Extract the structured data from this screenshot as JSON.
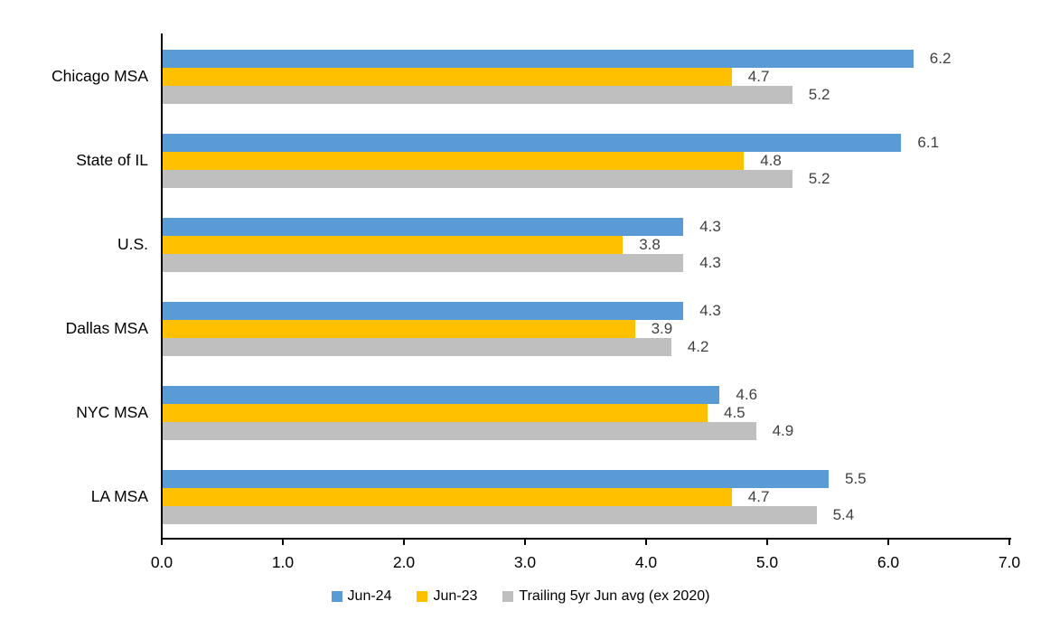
{
  "chart_data": {
    "type": "bar",
    "orientation": "horizontal",
    "title": "",
    "xlabel": "",
    "ylabel": "",
    "xlim": [
      0,
      7
    ],
    "xticks": [
      0,
      1,
      2,
      3,
      4,
      5,
      6,
      7
    ],
    "xtick_labels": [
      "0.0",
      "1.0",
      "2.0",
      "3.0",
      "4.0",
      "5.0",
      "6.0",
      "7.0"
    ],
    "grid": false,
    "data_labels": true,
    "legend_position": "bottom",
    "categories": [
      "Chicago MSA",
      "State of IL",
      "U.S.",
      "Dallas MSA",
      "NYC MSA",
      "LA MSA"
    ],
    "series": [
      {
        "name": "Jun-24",
        "color": "#5B9BD5",
        "values": [
          6.2,
          6.1,
          4.3,
          4.3,
          4.6,
          5.5
        ]
      },
      {
        "name": "Jun-23",
        "color": "#FFC000",
        "values": [
          4.7,
          4.8,
          3.8,
          3.9,
          4.5,
          4.7
        ]
      },
      {
        "name": "Trailing 5yr Jun avg (ex 2020)",
        "color": "#BFBFBF",
        "values": [
          5.2,
          5.2,
          4.3,
          4.2,
          4.9,
          5.4
        ]
      }
    ],
    "colors": {
      "axis_line": "#000000",
      "data_label_text": "#404040",
      "tick_label_text": "#000000",
      "category_label_text": "#000000",
      "background": "#FFFFFF"
    }
  }
}
